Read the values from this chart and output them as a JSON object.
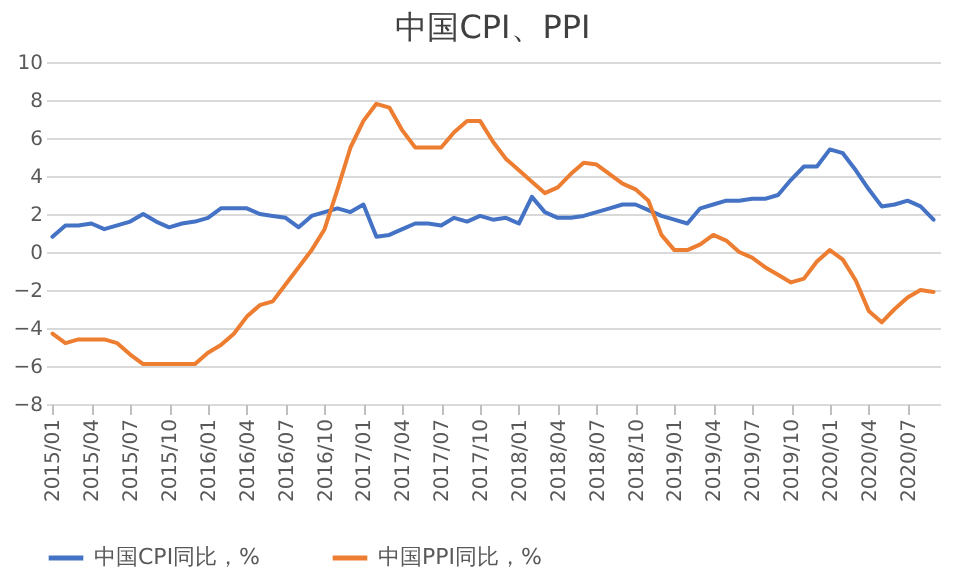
{
  "chart_data": {
    "type": "line",
    "title": "中国CPI、PPI",
    "categories": [
      "2015/01",
      null,
      null,
      "2015/04",
      null,
      null,
      "2015/07",
      null,
      null,
      "2015/10",
      null,
      null,
      "2016/01",
      null,
      null,
      "2016/04",
      null,
      null,
      "2016/07",
      null,
      null,
      "2016/10",
      null,
      null,
      "2017/01",
      null,
      null,
      "2017/04",
      null,
      null,
      "2017/07",
      null,
      null,
      "2017/10",
      null,
      null,
      "2018/01",
      null,
      null,
      "2018/04",
      null,
      null,
      "2018/07",
      null,
      null,
      "2018/10",
      null,
      null,
      "2019/01",
      null,
      null,
      "2019/04",
      null,
      null,
      "2019/07",
      null,
      null,
      "2019/10",
      null,
      null,
      "2020/01",
      null,
      null,
      "2020/04",
      null,
      null,
      "2020/07",
      null,
      null
    ],
    "series": [
      {
        "name": "中国CPI同比，%",
        "color": "#4472c4",
        "values": [
          0.8,
          1.4,
          1.4,
          1.5,
          1.2,
          1.4,
          1.6,
          2.0,
          1.6,
          1.3,
          1.5,
          1.6,
          1.8,
          2.3,
          2.3,
          2.3,
          2.0,
          1.9,
          1.8,
          1.3,
          1.9,
          2.1,
          2.3,
          2.1,
          2.5,
          0.8,
          0.9,
          1.2,
          1.5,
          1.5,
          1.4,
          1.8,
          1.6,
          1.9,
          1.7,
          1.8,
          1.5,
          2.9,
          2.1,
          1.8,
          1.8,
          1.9,
          2.1,
          2.3,
          2.5,
          2.5,
          2.2,
          1.9,
          1.7,
          1.5,
          2.3,
          2.5,
          2.7,
          2.7,
          2.8,
          2.8,
          3.0,
          3.8,
          4.5,
          4.5,
          5.4,
          5.2,
          4.3,
          3.3,
          2.4,
          2.5,
          2.7,
          2.4,
          1.7
        ]
      },
      {
        "name": "中国PPI同比，%",
        "color": "#ed7d31",
        "values": [
          -4.3,
          -4.8,
          -4.6,
          -4.6,
          -4.6,
          -4.8,
          -5.4,
          -5.9,
          -5.9,
          -5.9,
          -5.9,
          -5.9,
          -5.3,
          -4.9,
          -4.3,
          -3.4,
          -2.8,
          -2.6,
          -1.7,
          -0.8,
          0.1,
          1.2,
          3.3,
          5.5,
          6.9,
          7.8,
          7.6,
          6.4,
          5.5,
          5.5,
          5.5,
          6.3,
          6.9,
          6.9,
          5.8,
          4.9,
          4.3,
          3.7,
          3.1,
          3.4,
          4.1,
          4.7,
          4.6,
          4.1,
          3.6,
          3.3,
          2.7,
          0.9,
          0.1,
          0.1,
          0.4,
          0.9,
          0.6,
          0.0,
          -0.3,
          -0.8,
          -1.2,
          -1.6,
          -1.4,
          -0.5,
          0.1,
          -0.4,
          -1.5,
          -3.1,
          -3.7,
          -3.0,
          -2.4,
          -2.0,
          -2.1
        ]
      }
    ],
    "ylim": [
      -8,
      10
    ],
    "yticks": [
      -8,
      -6,
      -4,
      -2,
      0,
      2,
      4,
      6,
      8,
      10
    ],
    "grid": "y",
    "legend": "bottom",
    "line_style": "solid",
    "marker": "none"
  }
}
